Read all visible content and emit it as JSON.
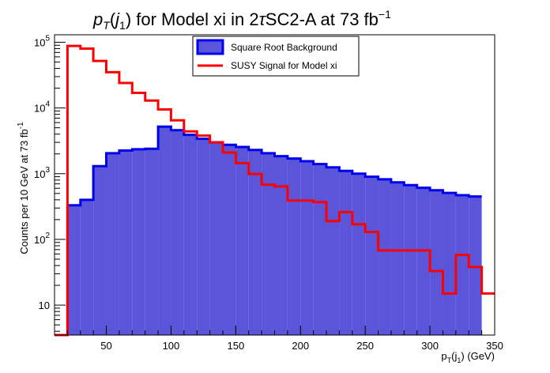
{
  "chart_data": {
    "type": "histogram",
    "title": "p_T(j_1) for Model xi in 2τSC2-A at 73 fb^-1",
    "title_parts": {
      "p": "p",
      "T": "T",
      "open": "(",
      "j": "j",
      "one": "1",
      "mid": ") for Model xi in 2",
      "tau": "τ",
      "rest": "SC2-A at 73 fb",
      "sup": "−1"
    },
    "xlabel": "p_T(j_1) (GeV)",
    "xlabel_parts": {
      "p": "p",
      "T": "T",
      "open": "(j",
      "one": "1",
      "rest": ") (GeV)"
    },
    "ylabel": "Counts per 10 GeV at 73 fb^-1",
    "ylabel_parts": {
      "main": "Counts per 10 GeV at 73 fb",
      "sup": "-1"
    },
    "xlim": [
      10,
      350
    ],
    "ylim": [
      3.5,
      130000
    ],
    "yscale": "log",
    "bin_width": 10,
    "bin_edges_start": 10,
    "x_ticks": [
      {
        "value": 50,
        "label": "50"
      },
      {
        "value": 100,
        "label": "100"
      },
      {
        "value": 150,
        "label": "150"
      },
      {
        "value": 200,
        "label": "200"
      },
      {
        "value": 250,
        "label": "250"
      },
      {
        "value": 300,
        "label": "300"
      },
      {
        "value": 350,
        "label": "350"
      }
    ],
    "y_ticks": [
      {
        "value": 10,
        "base": "10",
        "exp": ""
      },
      {
        "value": 100,
        "base": "10",
        "exp": "2"
      },
      {
        "value": 1000,
        "base": "10",
        "exp": "3"
      },
      {
        "value": 10000,
        "base": "10",
        "exp": "4"
      },
      {
        "value": 100000,
        "base": "10",
        "exp": "5"
      }
    ],
    "series": [
      {
        "name": "Square Root Background",
        "style": "filled",
        "fill_color": "#5b55d9",
        "line_color": "#0000ee",
        "values": [
          3.5,
          330,
          400,
          1300,
          2050,
          2250,
          2350,
          2400,
          5200,
          4600,
          3900,
          3400,
          3000,
          2750,
          2550,
          2300,
          2050,
          1850,
          1700,
          1550,
          1400,
          1250,
          1100,
          1000,
          900,
          820,
          740,
          670,
          610,
          560,
          510,
          470,
          450
        ]
      },
      {
        "name": "SUSY Signal for Model xi",
        "style": "line",
        "line_color": "#ff0000",
        "values": [
          3.5,
          88000,
          80000,
          52000,
          35000,
          24000,
          17000,
          13000,
          9500,
          6500,
          4400,
          3800,
          3000,
          2100,
          1450,
          990,
          680,
          640,
          390,
          390,
          370,
          190,
          260,
          170,
          130,
          68,
          68,
          68,
          68,
          33,
          15,
          58,
          38,
          15,
          15
        ]
      }
    ],
    "legend": {
      "position": "top-center"
    },
    "grid": false
  }
}
